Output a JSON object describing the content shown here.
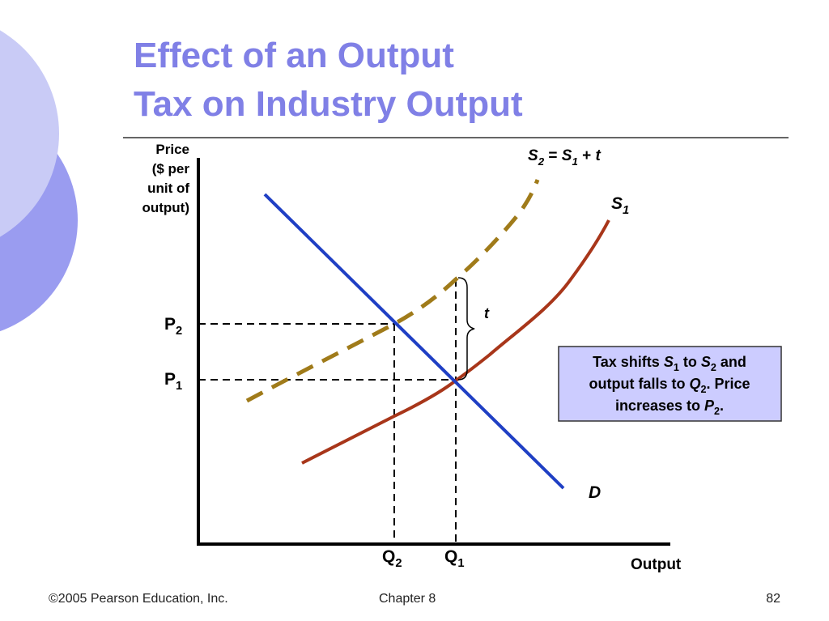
{
  "title": {
    "lines": [
      "Effect of an Output",
      "Tax on Industry Output"
    ]
  },
  "diagram": {
    "y_axis_label": [
      "Price",
      "($ per",
      "unit of",
      "output)"
    ],
    "x_axis_label": "Output",
    "p2_label": [
      "P",
      "2"
    ],
    "p1_label": [
      "P",
      "1"
    ],
    "q2_label": [
      "Q",
      "2"
    ],
    "q1_label": [
      "Q",
      "1"
    ],
    "demand_label": "D",
    "s1_label": [
      "S",
      "1"
    ],
    "s2_label": [
      "S",
      "2",
      " = ",
      "S",
      "1",
      " + ",
      "t"
    ],
    "tax_label": "t",
    "note": [
      [
        "Tax shifts ",
        "S",
        "1",
        " to ",
        "S",
        "2",
        " and"
      ],
      [
        "output falls to ",
        "Q",
        "2",
        ". Price"
      ],
      [
        "increases to ",
        "P",
        "2",
        "."
      ]
    ]
  },
  "footer": {
    "left": "©2005 Pearson Education, Inc.",
    "center": "Chapter 8",
    "right": "82"
  }
}
